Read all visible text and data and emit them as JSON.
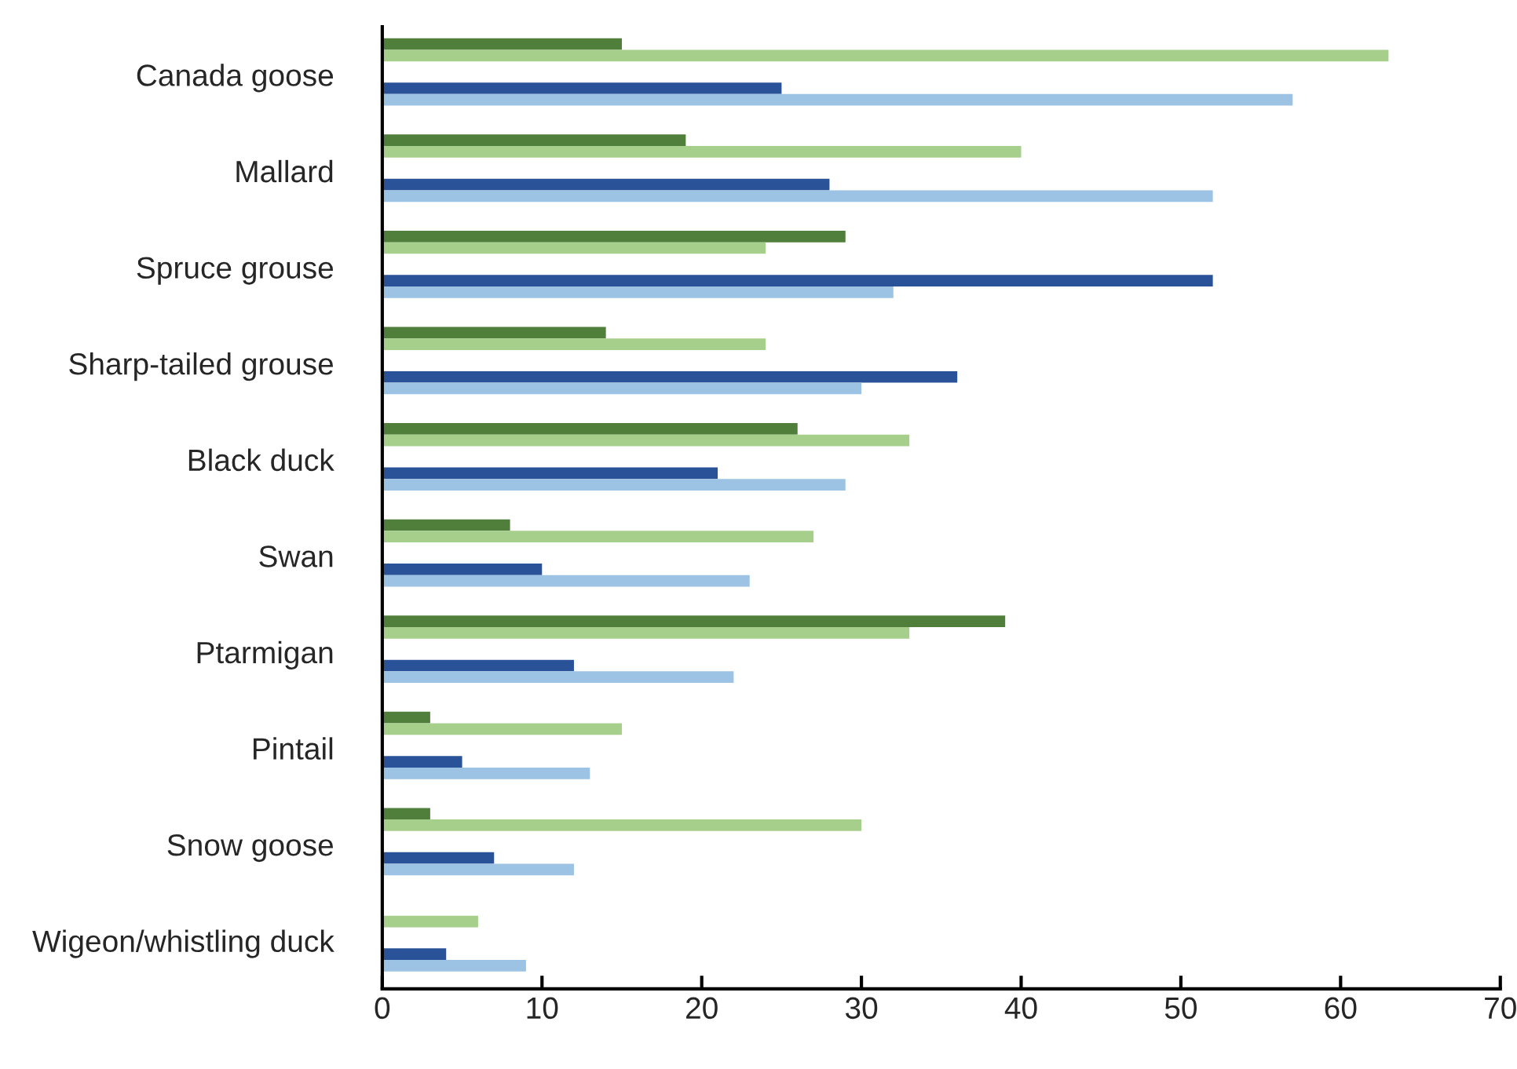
{
  "chart_data": {
    "type": "bar",
    "orientation": "horizontal",
    "categories": [
      "Canada goose",
      "Mallard",
      "Spruce grouse",
      "Sharp-tailed grouse",
      "Black duck",
      "Swan",
      "Ptarmigan",
      "Pintail",
      "Snow goose",
      "Wigeon/whistling duck"
    ],
    "series": [
      {
        "color": "#4f7f3a",
        "values": [
          15,
          19,
          29,
          14,
          26,
          8,
          39,
          3,
          3,
          null
        ]
      },
      {
        "color": "#a6cf8c",
        "values": [
          63,
          40,
          24,
          24,
          33,
          27,
          33,
          15,
          30,
          6
        ]
      },
      {
        "color": "#2a5298",
        "values": [
          25,
          28,
          52,
          36,
          21,
          10,
          12,
          5,
          7,
          4
        ]
      },
      {
        "color": "#9cc3e4",
        "values": [
          57,
          52,
          32,
          30,
          29,
          23,
          22,
          13,
          12,
          9
        ]
      }
    ],
    "xlim": [
      0,
      70
    ],
    "xticks": [
      0,
      10,
      20,
      30,
      40,
      50,
      60,
      70
    ],
    "grid": false
  }
}
